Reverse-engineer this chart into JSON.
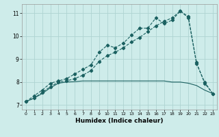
{
  "xlabel": "Humidex (Indice chaleur)",
  "ylabel": "",
  "background_color": "#ceecea",
  "grid_color": "#aed4d2",
  "line_color": "#1a6060",
  "xlim": [
    -0.5,
    23.5
  ],
  "ylim": [
    6.8,
    11.4
  ],
  "xticks": [
    0,
    1,
    2,
    3,
    4,
    5,
    6,
    7,
    8,
    9,
    10,
    11,
    12,
    13,
    14,
    15,
    16,
    17,
    18,
    19,
    20,
    21,
    22,
    23
  ],
  "yticks": [
    7,
    8,
    9,
    10,
    11
  ],
  "line1_x": [
    0,
    1,
    2,
    3,
    4,
    5,
    6,
    7,
    8,
    9,
    10,
    11,
    12,
    13,
    14,
    15,
    16,
    17,
    18,
    19,
    20,
    21,
    22,
    23
  ],
  "line1_y": [
    7.15,
    7.4,
    7.65,
    7.95,
    8.05,
    8.15,
    8.35,
    8.55,
    8.75,
    9.3,
    9.6,
    9.5,
    9.7,
    10.05,
    10.35,
    10.35,
    10.8,
    10.55,
    10.7,
    11.1,
    10.85,
    8.85,
    7.95,
    7.5
  ],
  "line2_x": [
    0,
    1,
    2,
    3,
    4,
    5,
    6,
    7,
    8,
    9,
    10,
    11,
    12,
    13,
    14,
    15,
    16,
    17,
    18,
    19,
    20,
    21,
    22,
    23
  ],
  "line2_y": [
    7.15,
    7.3,
    7.55,
    7.8,
    8.0,
    8.05,
    8.15,
    8.3,
    8.5,
    8.9,
    9.15,
    9.3,
    9.5,
    9.75,
    9.95,
    10.2,
    10.45,
    10.65,
    10.8,
    11.1,
    10.8,
    8.8,
    8.0,
    7.5
  ],
  "line3_x": [
    0,
    1,
    2,
    3,
    4,
    5,
    6,
    7,
    8,
    9,
    10,
    11,
    12,
    13,
    14,
    15,
    16,
    17,
    18,
    19,
    20,
    21,
    22,
    23
  ],
  "line3_y": [
    7.15,
    7.3,
    7.5,
    7.75,
    7.95,
    8.0,
    8.02,
    8.05,
    8.05,
    8.05,
    8.05,
    8.05,
    8.05,
    8.05,
    8.05,
    8.05,
    8.05,
    8.05,
    8.0,
    8.0,
    7.95,
    7.85,
    7.65,
    7.5
  ]
}
